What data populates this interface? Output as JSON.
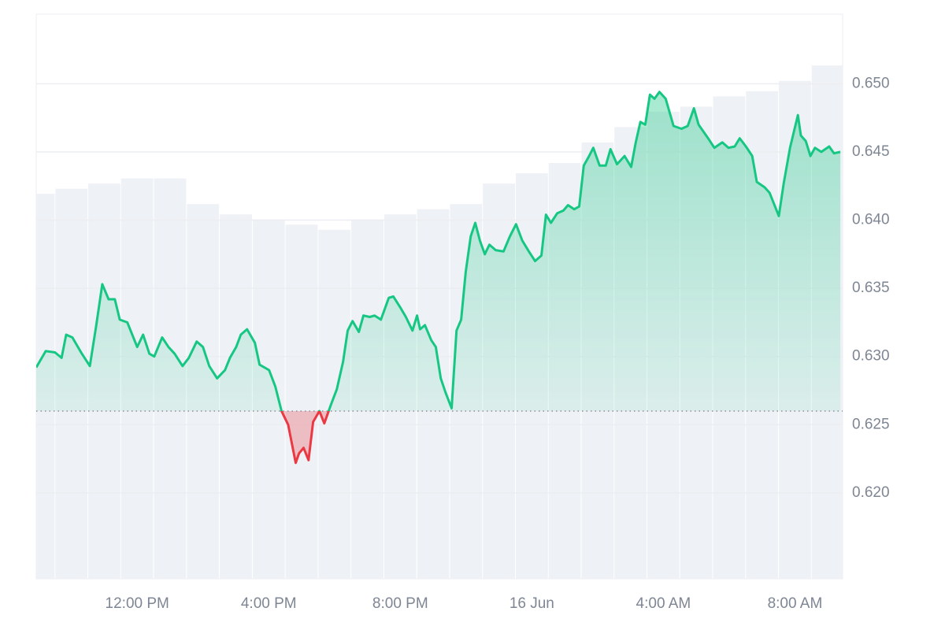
{
  "chart_data": {
    "type": "area",
    "x": [
      8.93,
      9.22,
      9.5,
      9.7,
      9.84,
      10.03,
      10.32,
      10.56,
      10.75,
      10.94,
      11.13,
      11.32,
      11.47,
      11.7,
      12.0,
      12.18,
      12.37,
      12.52,
      12.76,
      12.95,
      13.14,
      13.38,
      13.57,
      13.81,
      14.0,
      14.19,
      14.43,
      14.67,
      14.82,
      15.01,
      15.15,
      15.34,
      15.58,
      15.72,
      16.01,
      16.2,
      16.39,
      16.59,
      16.82,
      16.92,
      17.06,
      17.21,
      17.35,
      17.54,
      17.69,
      17.88,
      18.07,
      18.26,
      18.4,
      18.55,
      18.74,
      18.88,
      19.07,
      19.22,
      19.41,
      19.65,
      19.79,
      20.0,
      20.17,
      20.37,
      20.51,
      20.6,
      20.75,
      20.94,
      21.08,
      21.23,
      21.37,
      21.56,
      21.71,
      21.85,
      21.99,
      22.14,
      22.28,
      22.42,
      22.57,
      22.71,
      22.9,
      23.14,
      23.33,
      23.52,
      23.71,
      23.91,
      24.1,
      24.29,
      24.43,
      24.58,
      24.77,
      24.96,
      25.1,
      25.29,
      25.44,
      25.58,
      25.72,
      25.87,
      26.06,
      26.25,
      26.39,
      26.59,
      26.82,
      27.02,
      27.16,
      27.3,
      27.45,
      27.59,
      27.73,
      27.88,
      28.07,
      28.31,
      28.55,
      28.74,
      28.93,
      29.07,
      29.36,
      29.55,
      29.79,
      29.98,
      30.17,
      30.32,
      30.51,
      30.7,
      30.84,
      31.08,
      31.23,
      31.51,
      31.66,
      31.85,
      32.09,
      32.18,
      32.33,
      32.47,
      32.61,
      32.8,
      33.04,
      33.19,
      33.38
    ],
    "values": [
      0.6292,
      0.6304,
      0.6303,
      0.6299,
      0.6316,
      0.6314,
      0.6302,
      0.6293,
      0.6322,
      0.6353,
      0.6342,
      0.6342,
      0.6327,
      0.6325,
      0.6307,
      0.6316,
      0.6302,
      0.63,
      0.6314,
      0.6307,
      0.6302,
      0.6293,
      0.6299,
      0.6311,
      0.6307,
      0.6293,
      0.6284,
      0.629,
      0.6299,
      0.6307,
      0.6316,
      0.632,
      0.631,
      0.6294,
      0.629,
      0.6278,
      0.626,
      0.625,
      0.6222,
      0.6229,
      0.6233,
      0.6224,
      0.6252,
      0.626,
      0.6251,
      0.6264,
      0.6276,
      0.6296,
      0.6319,
      0.6326,
      0.6318,
      0.633,
      0.6329,
      0.633,
      0.6327,
      0.6343,
      0.6344,
      0.6336,
      0.6329,
      0.6319,
      0.633,
      0.632,
      0.6323,
      0.6312,
      0.6307,
      0.6284,
      0.6274,
      0.6262,
      0.6319,
      0.6327,
      0.6362,
      0.6388,
      0.6398,
      0.6385,
      0.6375,
      0.6382,
      0.6378,
      0.6377,
      0.6388,
      0.6397,
      0.6385,
      0.6377,
      0.637,
      0.6374,
      0.6404,
      0.6398,
      0.6405,
      0.6407,
      0.6411,
      0.6408,
      0.641,
      0.644,
      0.6446,
      0.6453,
      0.644,
      0.644,
      0.6452,
      0.6441,
      0.6447,
      0.6439,
      0.6457,
      0.6472,
      0.647,
      0.6492,
      0.6489,
      0.6494,
      0.6489,
      0.6469,
      0.6467,
      0.6469,
      0.6482,
      0.647,
      0.646,
      0.6453,
      0.6457,
      0.6453,
      0.6454,
      0.646,
      0.6454,
      0.6447,
      0.6428,
      0.6424,
      0.642,
      0.6403,
      0.6427,
      0.6453,
      0.6477,
      0.6462,
      0.6458,
      0.6447,
      0.6453,
      0.645,
      0.6454,
      0.6449,
      0.645
    ],
    "baseline": 0.626,
    "colors": {
      "up": "#16c784",
      "down": "#ea3943",
      "baseline": "#8a8f99"
    },
    "xlim": [
      8.93,
      33.45
    ],
    "xticks": [
      {
        "value": 12,
        "label": "12:00 PM"
      },
      {
        "value": 16,
        "label": "4:00 PM"
      },
      {
        "value": 20,
        "label": "8:00 PM"
      },
      {
        "value": 24,
        "label": "16 Jun"
      },
      {
        "value": 28,
        "label": "4:00 AM"
      },
      {
        "value": 32,
        "label": "8:00 AM"
      }
    ],
    "ylim": [
      0.6137,
      0.6551
    ],
    "yticks": [
      {
        "value": 0.62,
        "label": "0.620"
      },
      {
        "value": 0.625,
        "label": "0.625"
      },
      {
        "value": 0.63,
        "label": "0.630"
      },
      {
        "value": 0.635,
        "label": "0.635"
      },
      {
        "value": 0.64,
        "label": "0.640"
      },
      {
        "value": 0.645,
        "label": "0.645"
      },
      {
        "value": 0.65,
        "label": "0.650"
      }
    ],
    "grid": true,
    "volume": {
      "x": [
        9,
        10,
        11,
        12,
        13,
        14,
        15,
        16,
        17,
        18,
        19,
        20,
        21,
        22,
        23,
        24,
        25,
        26,
        27,
        28,
        29,
        30,
        31,
        32,
        33
      ],
      "values": [
        75,
        76,
        77,
        78,
        78,
        73,
        71,
        70,
        69,
        68,
        70,
        71,
        72,
        73,
        77,
        79,
        81,
        85,
        88,
        91,
        92,
        94,
        95,
        97,
        100
      ],
      "color": "#eef1f5",
      "ylim": [
        0,
        110
      ]
    }
  }
}
